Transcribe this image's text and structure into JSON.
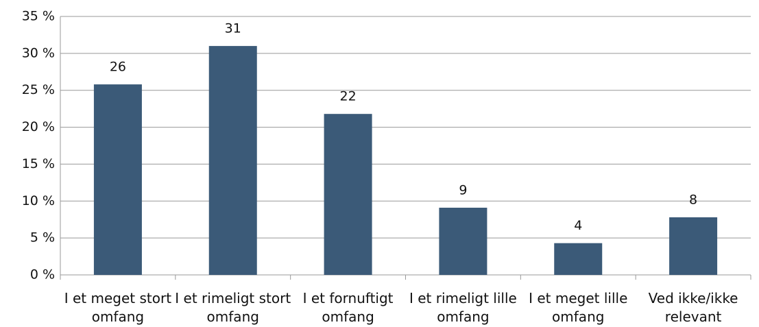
{
  "chart_data": {
    "type": "bar",
    "categories": [
      "I et meget stort omfang",
      "I et rimeligt stort omfang",
      "I et fornuftigt omfang",
      "I et rimeligt lille omfang",
      "I et meget lille omfang",
      "Ved ikke/ikke relevant"
    ],
    "values": [
      25.8,
      31,
      21.8,
      9.1,
      4.3,
      7.8
    ],
    "value_labels": [
      "26",
      "31",
      "22",
      "9",
      "4",
      "8"
    ],
    "color": "#3b5a78",
    "ylim": [
      0,
      35
    ],
    "yticks": [
      {
        "value": 0,
        "label": "0 %"
      },
      {
        "value": 5,
        "label": "5 %"
      },
      {
        "value": 10,
        "label": "10 %"
      },
      {
        "value": 15,
        "label": "15 %"
      },
      {
        "value": 20,
        "label": "20 %"
      },
      {
        "value": 25,
        "label": "25 %"
      },
      {
        "value": 30,
        "label": "30 %"
      },
      {
        "value": 35,
        "label": "35 %"
      }
    ],
    "grid": true
  }
}
